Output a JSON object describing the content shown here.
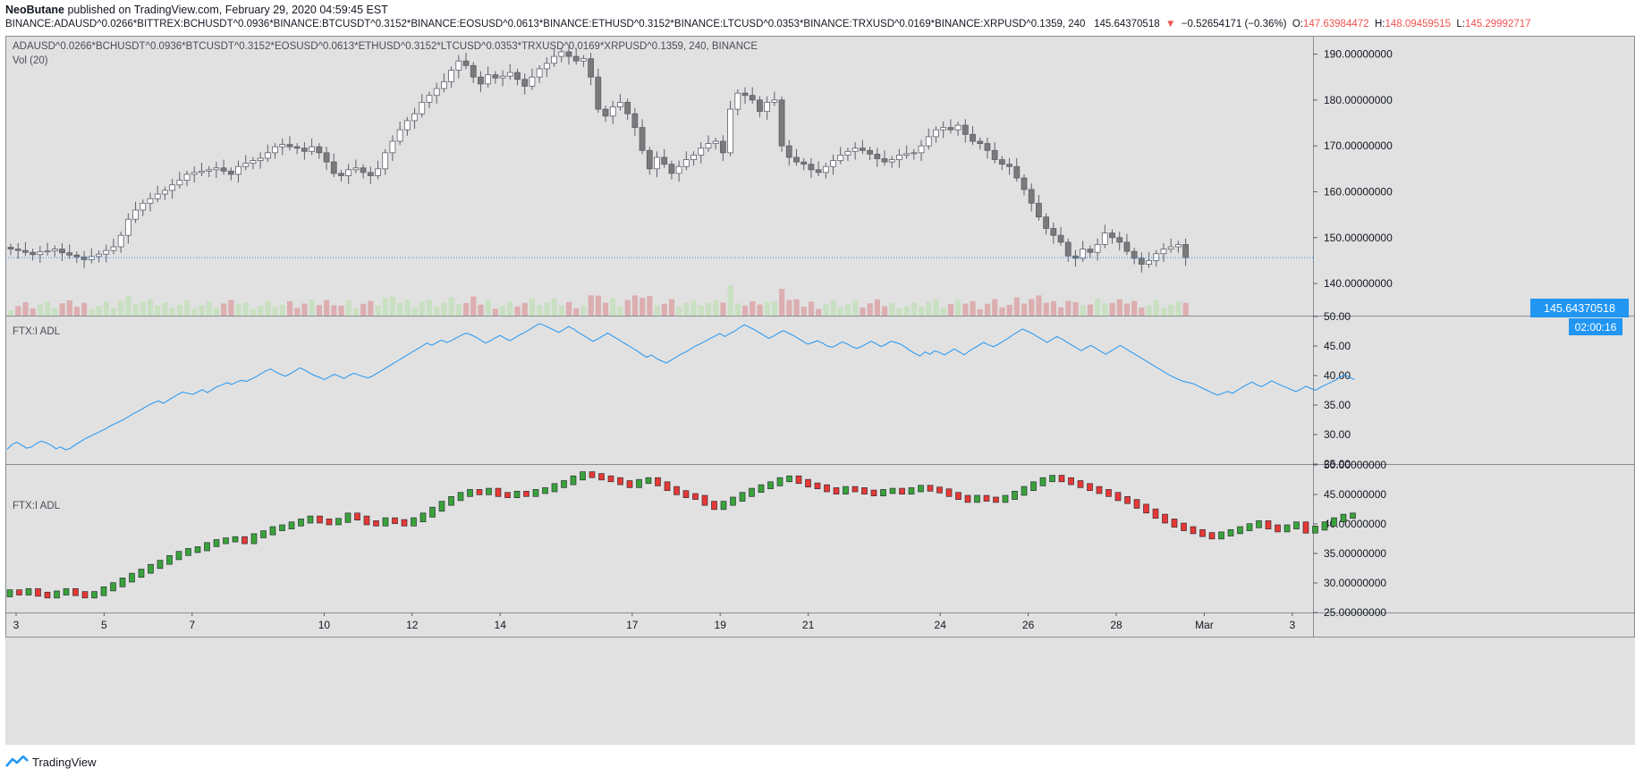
{
  "header": {
    "author": "NeoButane",
    "published_text": "published on TradingView.com, February 29, 2020 04:59:45 EST",
    "symbol_line": "BINANCE:ADAUSD^0.0266*BITTREX:BCHUSDT^0.0936*BINANCE:BTCUSDT^0.3152*BINANCE:EOSUSD^0.0613*BINANCE:ETHUSD^0.3152*BINANCE:LTCUSD^0.0353*BINANCE:TRXUSD^0.0169*BINANCE:XRPUSD^0.1359, 240",
    "last_price": "145.64370518",
    "change_arrow": "▼",
    "change": "−0.52654171 (−0.36%)",
    "ohlc": {
      "o_label": "O:",
      "o": "147.63984472",
      "h_label": "H:",
      "h": "148.09459515",
      "l_label": "L:",
      "l": "145.29992717"
    }
  },
  "panes": {
    "main": {
      "title": "ADAUSD^0.0266*BCHUSDT^0.0936*BTCUSDT^0.3152*EOSUSD^0.0613*ETHUSD^0.3152*LTCUSD^0.0353*TRXUSD^0.0169*XRPUSD^0.1359, 240, BINANCE",
      "vol_label": "Vol (20)",
      "price_tag": "145.64370518",
      "countdown_tag": "02:00:16",
      "yticks": [
        "190.00000000",
        "180.00000000",
        "170.00000000",
        "160.00000000",
        "150.00000000",
        "140.00000000"
      ]
    },
    "adl_line": {
      "title": "FTX:I ADL",
      "yticks": [
        "50.00",
        "45.00",
        "40.00",
        "35.00",
        "30.00",
        "25.00"
      ]
    },
    "adl_bars": {
      "title": "FTX:I ADL",
      "yticks": [
        "50.00000000",
        "45.00000000",
        "40.00000000",
        "35.00000000",
        "30.00000000",
        "25.00000000"
      ]
    }
  },
  "xaxis": {
    "ticks": [
      "3",
      "5",
      "7",
      "10",
      "12",
      "14",
      "17",
      "19",
      "21",
      "24",
      "26",
      "28",
      "Mar",
      "3"
    ]
  },
  "footer": {
    "brand": "TradingView"
  },
  "colors": {
    "background": "#e1e1e1",
    "candle_up_fill": "#ffffff",
    "candle_down_fill": "#7a7a7a",
    "candle_border": "#5d606b",
    "volume_up": "#c8e0c1",
    "volume_down": "#dcaeb0",
    "adl_line": "#2196f3",
    "bar_up": "#3aa23a",
    "bar_down": "#e53935",
    "price_tag": "#2196f3"
  },
  "chart_data": [
    {
      "type": "candlestick",
      "pane": "main",
      "ylim": [
        133,
        194
      ],
      "x_range": [
        "Feb 3",
        "Mar 3"
      ],
      "close": [
        147.5,
        147.2,
        146.8,
        146.3,
        146.9,
        147.1,
        147.5,
        146.7,
        146.2,
        145.8,
        145.2,
        145.9,
        146.4,
        147.2,
        148.0,
        150.5,
        154.0,
        156.0,
        157.5,
        158.5,
        159.5,
        160.3,
        161.5,
        162.5,
        163.8,
        164.2,
        164.5,
        164.8,
        165.2,
        164.5,
        163.8,
        165.5,
        166.2,
        166.8,
        167.3,
        168.5,
        169.8,
        170.3,
        169.8,
        169.5,
        168.8,
        169.8,
        168.5,
        166.5,
        164.0,
        163.5,
        164.8,
        165.2,
        164.2,
        163.5,
        165.0,
        168.5,
        171.0,
        173.5,
        175.5,
        177.0,
        179.5,
        181.0,
        182.5,
        184.0,
        186.5,
        188.5,
        187.5,
        185.0,
        183.5,
        185.5,
        184.8,
        185.2,
        186.0,
        184.5,
        183.0,
        185.0,
        186.8,
        188.0,
        189.5,
        190.5,
        189.5,
        188.5,
        189.0,
        185.0,
        178.0,
        176.5,
        178.5,
        179.5,
        177.0,
        174.0,
        169.0,
        165.0,
        167.5,
        166.0,
        164.0,
        165.5,
        167.0,
        168.0,
        169.5,
        170.5,
        171.0,
        168.5,
        178.0,
        181.5,
        181.0,
        180.0,
        177.5,
        179.5,
        180.0,
        170.0,
        167.5,
        166.5,
        166.0,
        164.8,
        164.2,
        165.5,
        166.8,
        168.0,
        168.8,
        169.5,
        169.0,
        168.2,
        167.2,
        166.5,
        167.0,
        168.0,
        168.3,
        168.5,
        170.0,
        172.0,
        173.5,
        174.0,
        173.5,
        174.5,
        172.5,
        171.0,
        170.5,
        169.0,
        167.0,
        166.0,
        165.5,
        163.0,
        160.5,
        157.5,
        154.5,
        152.0,
        150.5,
        149.0,
        146.0,
        145.5,
        147.5,
        146.8,
        148.5,
        151.0,
        150.0,
        149.0,
        147.0,
        145.5,
        144.2,
        145.0,
        146.5,
        147.5,
        148.0,
        148.5,
        145.64
      ]
    },
    {
      "type": "line",
      "pane": "adl_line",
      "name": "FTX:I ADL",
      "ylim": [
        25,
        50
      ],
      "values": [
        27.5,
        28.3,
        28.7,
        28.2,
        27.7,
        27.9,
        28.5,
        28.9,
        28.6,
        28.2,
        27.6,
        27.9,
        27.4,
        27.7,
        28.3,
        28.8,
        29.3,
        29.7,
        30.1,
        30.5,
        30.9,
        31.4,
        31.8,
        32.2,
        32.6,
        33.1,
        33.6,
        34.0,
        34.5,
        35.0,
        35.4,
        35.7,
        35.3,
        35.8,
        36.3,
        36.8,
        37.2,
        37.0,
        36.8,
        37.2,
        37.6,
        37.1,
        37.6,
        38.1,
        38.4,
        38.8,
        38.5,
        38.9,
        39.2,
        39.0,
        39.4,
        39.8,
        40.3,
        40.8,
        41.1,
        40.6,
        40.2,
        39.9,
        40.3,
        40.8,
        41.3,
        40.9,
        40.4,
        40.0,
        39.7,
        39.3,
        39.8,
        40.2,
        39.9,
        39.5,
        40.0,
        40.4,
        40.1,
        39.8,
        39.6,
        40.0,
        40.5,
        41.0,
        41.5,
        42.0,
        42.5,
        43.0,
        43.5,
        44.0,
        44.5,
        45.0,
        45.5,
        45.1,
        45.6,
        46.0,
        45.6,
        45.9,
        46.4,
        46.8,
        47.2,
        46.9,
        46.5,
        46.0,
        45.5,
        45.9,
        46.4,
        46.8,
        46.3,
        45.9,
        46.4,
        46.9,
        47.3,
        47.8,
        48.3,
        48.8,
        48.5,
        48.1,
        47.7,
        47.3,
        47.8,
        48.3,
        47.9,
        47.3,
        46.8,
        46.3,
        45.8,
        46.2,
        46.7,
        47.2,
        46.7,
        46.2,
        45.7,
        45.2,
        44.7,
        44.2,
        43.6,
        43.1,
        43.5,
        42.9,
        42.5,
        42.1,
        42.6,
        43.1,
        43.6,
        44.0,
        44.5,
        45.0,
        45.4,
        45.8,
        46.3,
        46.7,
        47.1,
        46.6,
        47.1,
        47.5,
        48.1,
        48.6,
        48.2,
        47.8,
        47.3,
        46.8,
        46.3,
        46.7,
        47.2,
        47.6,
        47.2,
        46.8,
        46.3,
        45.8,
        45.3,
        45.6,
        45.9,
        45.5,
        45.0,
        44.8,
        45.2,
        45.7,
        45.4,
        44.9,
        44.6,
        44.9,
        45.4,
        45.8,
        45.4,
        44.9,
        45.3,
        45.8,
        45.6,
        45.3,
        44.8,
        44.2,
        43.7,
        43.3,
        44.0,
        43.6,
        44.2,
        43.9,
        43.5,
        44.0,
        44.5,
        44.0,
        43.5,
        44.1,
        44.6,
        45.1,
        45.6,
        45.2,
        44.9,
        45.3,
        45.8,
        46.3,
        46.9,
        47.4,
        47.9,
        47.5,
        47.1,
        46.6,
        46.1,
        45.6,
        46.1,
        46.6,
        46.2,
        45.7,
        45.2,
        44.7,
        44.2,
        44.7,
        45.1,
        44.6,
        44.1,
        43.6,
        44.1,
        44.6,
        45.1,
        44.6,
        44.1,
        43.6,
        43.1,
        42.6,
        42.1,
        41.6,
        41.1,
        40.6,
        40.1,
        39.7,
        39.3,
        39.0,
        38.8,
        38.6,
        38.2,
        37.8,
        37.4,
        37.0,
        36.7,
        37.0,
        37.3,
        37.0,
        37.5,
        38.0,
        38.5,
        38.9,
        38.4,
        38.1,
        38.6,
        39.1,
        38.7,
        38.3,
        38.0,
        37.6,
        37.3,
        37.7,
        38.2,
        37.8,
        37.5,
        38.0,
        38.4,
        38.8,
        39.2,
        39.7,
        40.1,
        39.7,
        39.3
      ]
    },
    {
      "type": "bar",
      "pane": "adl_bars",
      "name": "FTX:I ADL",
      "ylim": [
        25,
        50
      ],
      "values": [
        28.5,
        28.3,
        28.7,
        28.1,
        27.8,
        28.3,
        28.7,
        28.2,
        27.8,
        28.2,
        29.0,
        29.7,
        30.5,
        31.3,
        32.0,
        32.8,
        33.5,
        34.3,
        35.0,
        35.5,
        35.8,
        36.5,
        37.0,
        37.3,
        37.5,
        37.0,
        38.0,
        38.5,
        39.2,
        39.5,
        40.0,
        40.5,
        41.0,
        40.5,
        40.2,
        40.6,
        41.5,
        41.0,
        40.2,
        40.0,
        40.7,
        40.4,
        40.0,
        40.7,
        41.5,
        42.5,
        43.5,
        44.3,
        45.0,
        45.5,
        45.3,
        45.7,
        45.0,
        44.8,
        45.2,
        45.0,
        45.5,
        45.8,
        46.5,
        47.0,
        47.8,
        48.5,
        48.2,
        47.8,
        47.5,
        47.0,
        46.5,
        47.2,
        47.5,
        46.8,
        46.0,
        45.3,
        44.8,
        44.5,
        43.5,
        42.8,
        43.5,
        44.2,
        45.0,
        45.7,
        46.3,
        46.8,
        47.5,
        47.8,
        47.2,
        46.6,
        46.3,
        45.8,
        45.4,
        46.0,
        45.8,
        45.4,
        45.1,
        45.5,
        45.7,
        45.4,
        45.8,
        46.2,
        45.9,
        45.6,
        45.0,
        44.5,
        44.0,
        44.5,
        44.2,
        44.0,
        44.5,
        45.2,
        46.0,
        46.8,
        47.5,
        47.9,
        47.5,
        47.0,
        46.5,
        46.0,
        45.5,
        45.0,
        44.3,
        43.8,
        43.0,
        42.2,
        41.3,
        40.5,
        39.8,
        39.2,
        38.7,
        38.2,
        37.8,
        38.3,
        38.7,
        39.2,
        39.7,
        40.2,
        39.5,
        39.0,
        39.5,
        40.0,
        38.8,
        39.3,
        40.0,
        40.7,
        41.3,
        41.5
      ]
    }
  ]
}
